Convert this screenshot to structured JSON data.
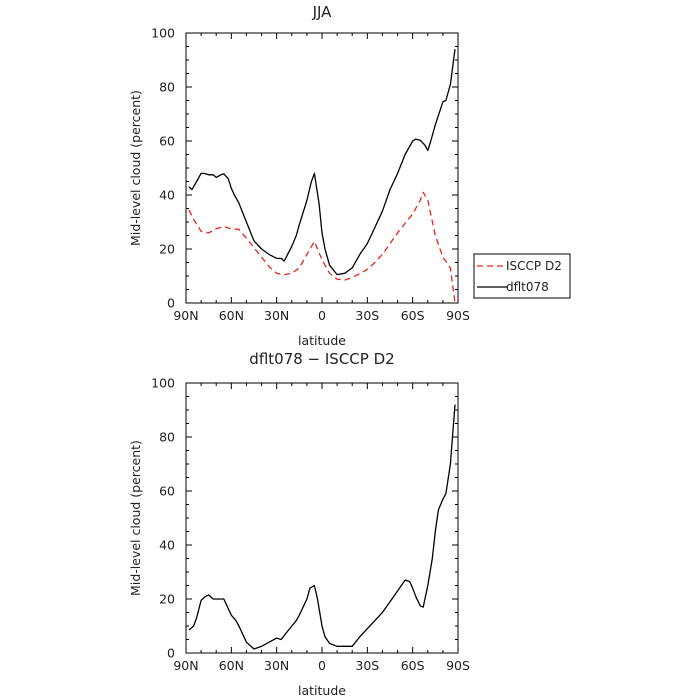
{
  "chart_data": [
    {
      "type": "line",
      "title": "JJA",
      "xlabel": "latitude",
      "ylabel": "Mid-level cloud (percent)",
      "x_tick_labels": [
        "90N",
        "60N",
        "30N",
        "0",
        "30S",
        "60S",
        "90S"
      ],
      "x_tick_values": [
        -90,
        -60,
        -30,
        0,
        30,
        60,
        90
      ],
      "y_tick_labels": [
        "0",
        "20",
        "40",
        "60",
        "80",
        "100"
      ],
      "y_tick_values": [
        0,
        20,
        40,
        60,
        80,
        100
      ],
      "xlim": [
        -90,
        90
      ],
      "ylim": [
        0,
        100
      ],
      "legend": "outside-right",
      "series": [
        {
          "name": "ISCCP D2",
          "color": "#e8251b",
          "dash": "dashed",
          "x": [
            -88,
            -85,
            -80,
            -75,
            -70,
            -65,
            -60,
            -55,
            -50,
            -45,
            -40,
            -35,
            -30,
            -25,
            -20,
            -15,
            -10,
            -5,
            0,
            5,
            10,
            15,
            20,
            25,
            30,
            35,
            40,
            45,
            50,
            55,
            60,
            65,
            67,
            70,
            75,
            80,
            85,
            88
          ],
          "y": [
            34.5,
            31,
            26.5,
            26,
            27.5,
            28.3,
            27.5,
            27.3,
            24,
            20.5,
            17,
            13.5,
            11,
            10.5,
            11,
            13,
            18,
            22.8,
            16,
            11,
            8.8,
            8.5,
            9.5,
            10.8,
            12.5,
            15,
            18,
            22,
            26,
            29.5,
            33,
            38,
            41,
            38,
            25,
            17,
            13,
            0
          ]
        },
        {
          "name": "dflt078",
          "color": "#000000",
          "dash": "solid",
          "x": [
            -88,
            -86,
            -83,
            -80,
            -78,
            -75,
            -72,
            -70,
            -67,
            -65,
            -62,
            -60,
            -58,
            -55,
            -50,
            -45,
            -40,
            -35,
            -30,
            -27,
            -25,
            -20,
            -17,
            -15,
            -10,
            -7,
            -5,
            -2,
            0,
            2,
            5,
            10,
            15,
            20,
            25,
            30,
            35,
            40,
            45,
            50,
            55,
            60,
            62,
            65,
            68,
            70,
            72,
            75,
            80,
            82,
            85,
            88
          ],
          "y": [
            43,
            42,
            45,
            48,
            48,
            47.5,
            47.5,
            46.5,
            47.5,
            47.8,
            46,
            42.5,
            40,
            37,
            30,
            23,
            20,
            18,
            16.5,
            16.5,
            15.5,
            21,
            25,
            29,
            38,
            45,
            48,
            37,
            26,
            20,
            14,
            10.5,
            11,
            13,
            18,
            22,
            28,
            34,
            42,
            48,
            55,
            60,
            60.7,
            60.3,
            58.5,
            56.5,
            60,
            66,
            74.5,
            75,
            81,
            94
          ]
        }
      ]
    },
    {
      "type": "line",
      "title": "dflt078 − ISCCP D2",
      "xlabel": "latitude",
      "ylabel": "Mid-level cloud (percent)",
      "x_tick_labels": [
        "90N",
        "60N",
        "30N",
        "0",
        "30S",
        "60S",
        "90S"
      ],
      "x_tick_values": [
        -90,
        -60,
        -30,
        0,
        30,
        60,
        90
      ],
      "y_tick_labels": [
        "0",
        "20",
        "40",
        "60",
        "80",
        "100"
      ],
      "y_tick_values": [
        0,
        20,
        40,
        60,
        80,
        100
      ],
      "xlim": [
        -90,
        90
      ],
      "ylim": [
        0,
        100
      ],
      "series": [
        {
          "color": "#000000",
          "dash": "solid",
          "x": [
            -88,
            -85,
            -83,
            -80,
            -77,
            -75,
            -72,
            -70,
            -65,
            -60,
            -57,
            -55,
            -50,
            -45,
            -40,
            -35,
            -30,
            -27,
            -25,
            -20,
            -17,
            -15,
            -10,
            -8,
            -5,
            -3,
            0,
            2,
            5,
            10,
            15,
            20,
            25,
            30,
            35,
            40,
            45,
            50,
            55,
            58,
            60,
            62,
            65,
            67,
            70,
            73,
            75,
            77,
            80,
            82,
            85,
            88
          ],
          "y": [
            8.5,
            10,
            13,
            19.5,
            21,
            21.5,
            20,
            20,
            20,
            14,
            12,
            10,
            4,
            1.5,
            2.5,
            4,
            5.5,
            5,
            6.5,
            10,
            12,
            14,
            20,
            24,
            25,
            20,
            10,
            6,
            3.5,
            2.5,
            2.5,
            2.5,
            6,
            9,
            12,
            15,
            19,
            23,
            27,
            26.5,
            24,
            21,
            17.5,
            17,
            25,
            35,
            45,
            53,
            57,
            59,
            70,
            92
          ]
        }
      ]
    }
  ]
}
